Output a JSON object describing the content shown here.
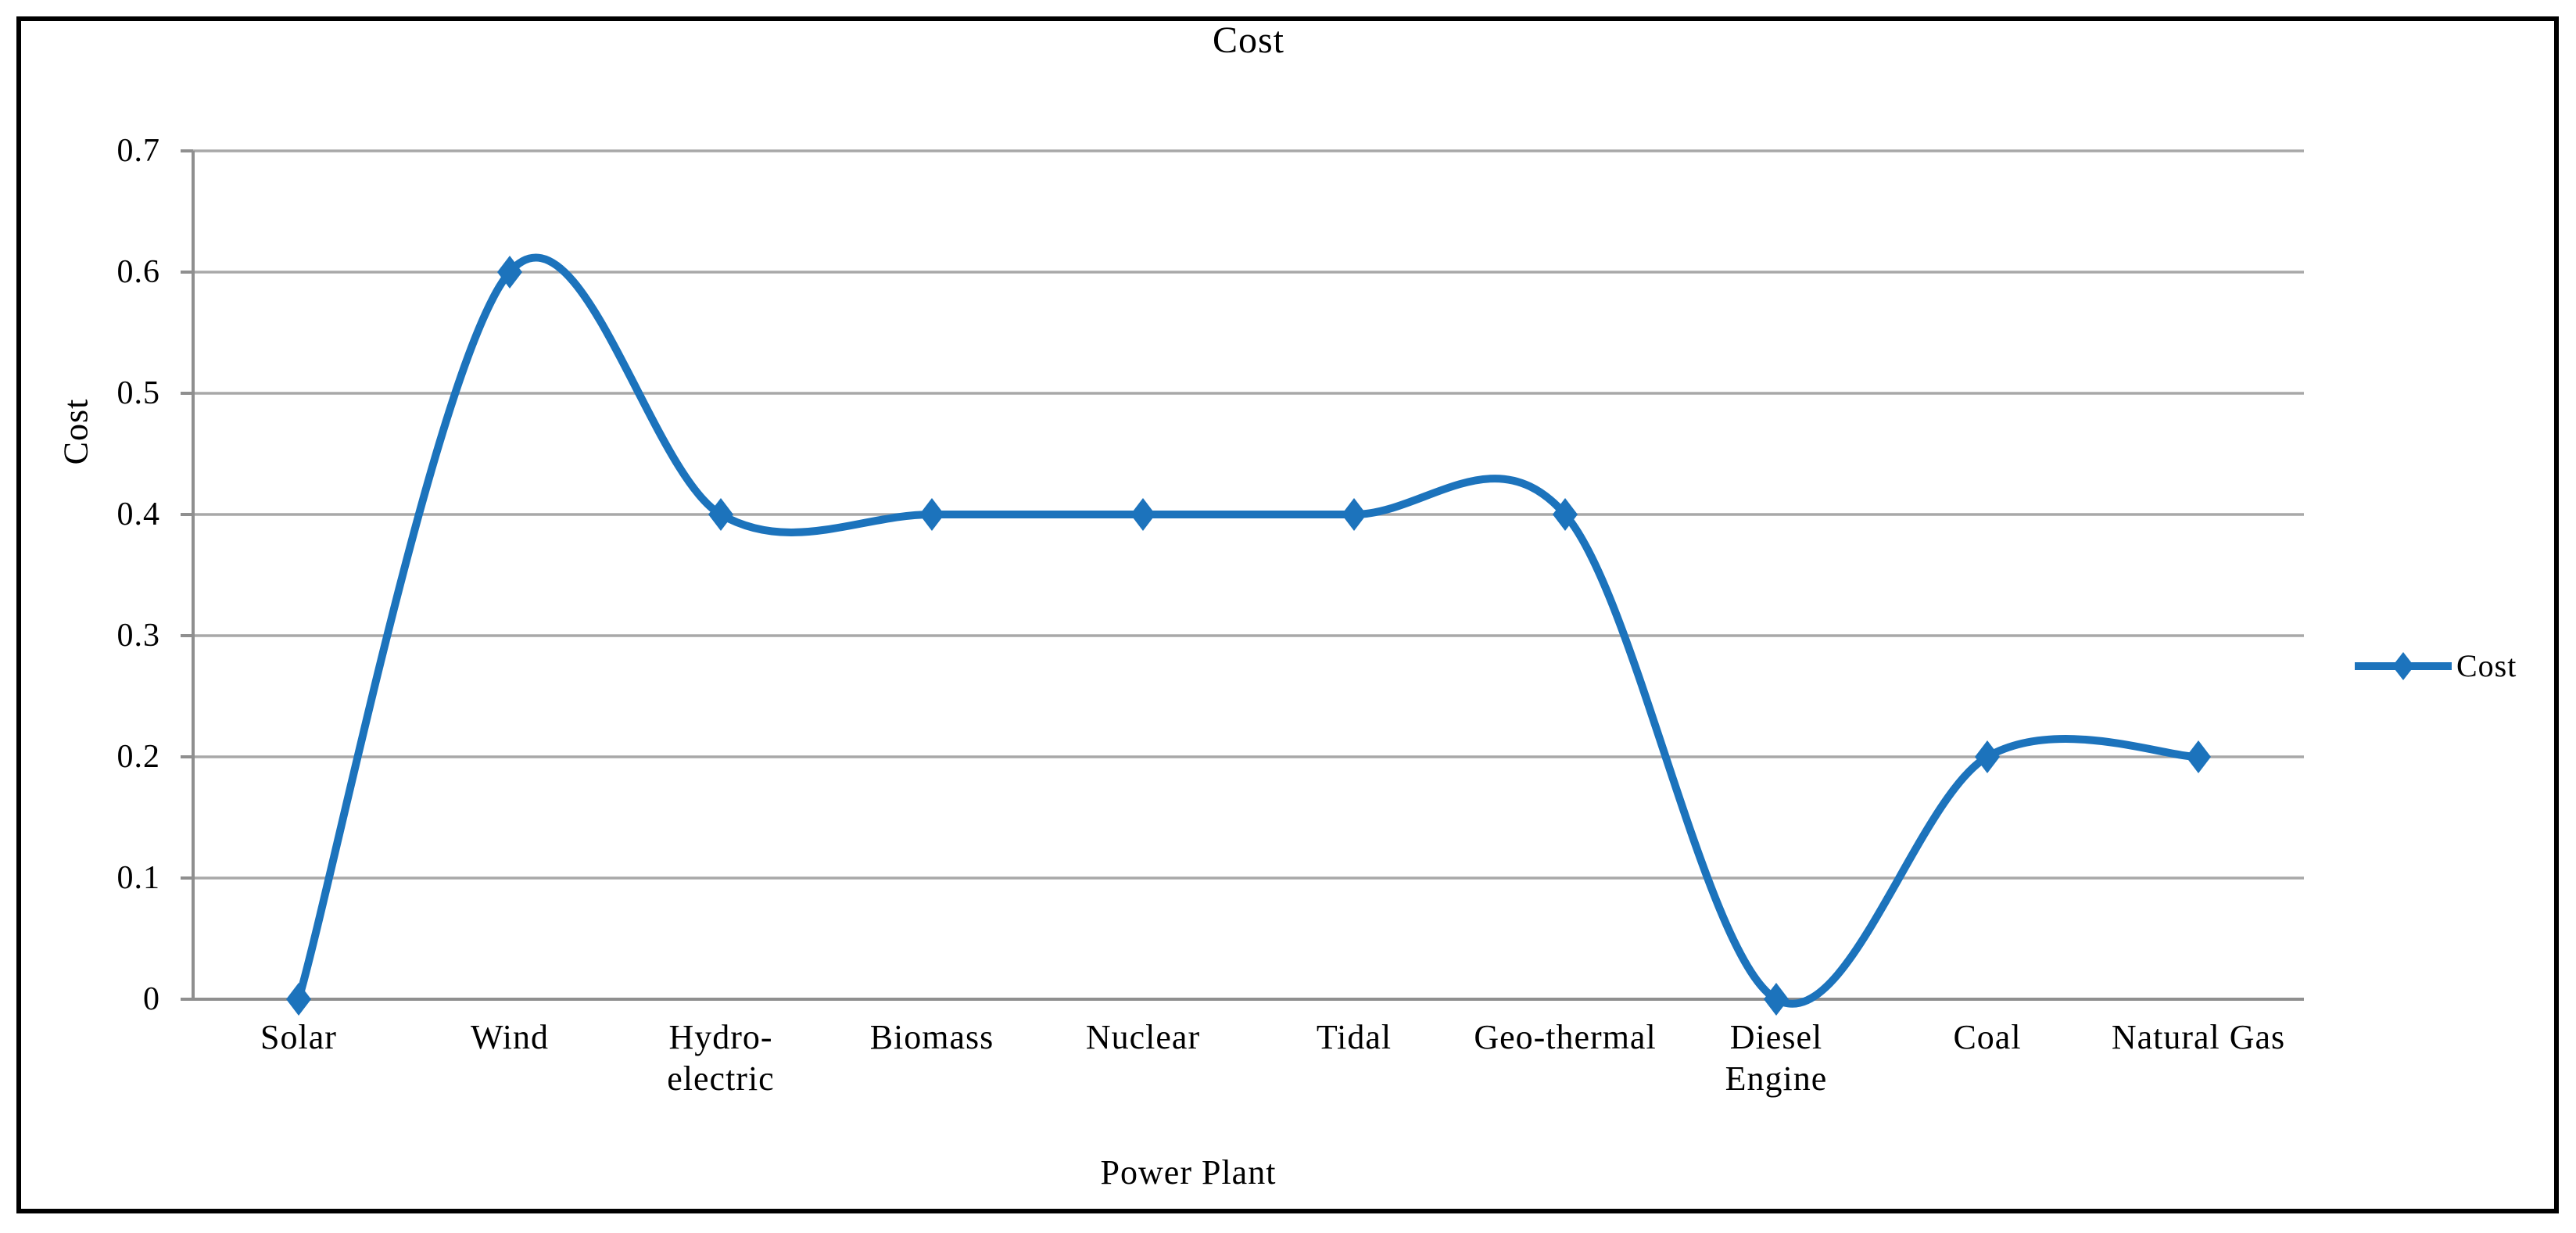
{
  "chart_data": {
    "type": "line",
    "title": "Cost",
    "xlabel": "Power Plant",
    "ylabel": "Cost",
    "categories": [
      "Solar",
      "Wind",
      "Hydro-electric",
      "Biomass",
      "Nuclear",
      "Tidal",
      "Geo-thermal",
      "Diesel Engine",
      "Coal",
      "Natural Gas"
    ],
    "x_tick_lines": [
      [
        "Solar"
      ],
      [
        "Wind"
      ],
      [
        "Hydro-",
        "electric"
      ],
      [
        "Biomass"
      ],
      [
        "Nuclear"
      ],
      [
        "Tidal"
      ],
      [
        "Geo-thermal"
      ],
      [
        "Diesel",
        "Engine"
      ],
      [
        "Coal"
      ],
      [
        "Natural Gas"
      ]
    ],
    "series": [
      {
        "name": "Cost",
        "values": [
          0,
          0.6,
          0.4,
          0.4,
          0.4,
          0.4,
          0.4,
          0,
          0.2,
          0.2
        ]
      }
    ],
    "ylim": [
      0,
      0.7
    ],
    "ytick_values": [
      0,
      0.1,
      0.2,
      0.3,
      0.4,
      0.5,
      0.6,
      0.7
    ],
    "ytick_labels": [
      "0",
      "0.1",
      "0.2",
      "0.3",
      "0.4",
      "0.5",
      "0.6",
      "0.7"
    ],
    "grid": "horizontal",
    "smooth_line": true,
    "marker": "diamond",
    "legend": {
      "position": "right",
      "entries": [
        "Cost"
      ]
    },
    "colors": {
      "series_line": "#1C73BC",
      "gridline": "#A8A8A8",
      "axis": "#8F8F8F",
      "text": "#000000",
      "border": "#000000",
      "background": "#FFFFFF"
    }
  }
}
